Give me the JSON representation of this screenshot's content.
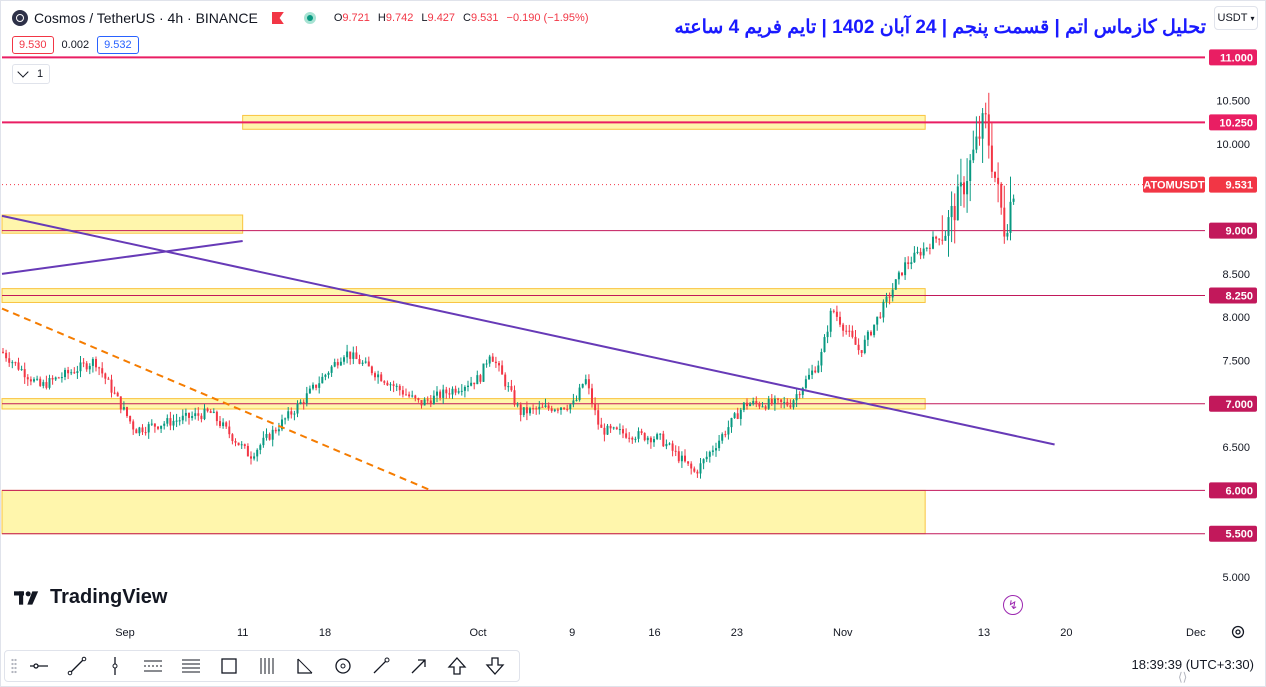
{
  "header": {
    "symbol_title": "Cosmos / TetherUS · 4h · BINANCE",
    "ohlc": [
      {
        "key": "O",
        "value": "9.721"
      },
      {
        "key": "H",
        "value": "9.742"
      },
      {
        "key": "L",
        "value": "9.427"
      },
      {
        "key": "C",
        "value": "9.531"
      }
    ],
    "change": "−0.190 (−1.95%)",
    "sell_price": "9.530",
    "spread": "0.002",
    "buy_price": "9.532",
    "indicator_count": "1"
  },
  "overlay_title": "تحلیل کازماس اتم | قسمت پنجم | 24 آبان 1402 | تایم فریم 4 ساعته",
  "currency": "USDT",
  "chart_data": {
    "type": "candlestick",
    "y_axis": {
      "ticks": [
        "10.500",
        "10.000",
        "8.500",
        "8.000",
        "7.500",
        "6.500",
        "5.000"
      ],
      "tick_values": [
        10.5,
        10.0,
        8.5,
        8.0,
        7.5,
        6.5,
        5.0
      ],
      "range": [
        4.7,
        11.5
      ]
    },
    "x_axis": {
      "ticks": [
        "Sep",
        "11",
        "18",
        "Oct",
        "9",
        "16",
        "23",
        "Nov",
        "13",
        "20",
        "Dec"
      ],
      "tick_dates": [
        "2023-09-01",
        "2023-09-11",
        "2023-09-18",
        "2023-10-01",
        "2023-10-09",
        "2023-10-16",
        "2023-10-23",
        "2023-11-01",
        "2023-11-13",
        "2023-11-20",
        "2023-12-01"
      ]
    },
    "price_levels": [
      {
        "label": "11.000",
        "value": 11.0,
        "color": "#e91e63"
      },
      {
        "label": "10.250",
        "value": 10.25,
        "color": "#e91e63"
      },
      {
        "label": "9.000",
        "value": 9.0,
        "color": "#c2185b"
      },
      {
        "label": "8.250",
        "value": 8.25,
        "color": "#c2185b"
      },
      {
        "label": "7.000",
        "value": 7.0,
        "color": "#c2185b"
      },
      {
        "label": "6.000",
        "value": 6.0,
        "color": "#c2185b"
      },
      {
        "label": "5.500",
        "value": 5.5,
        "color": "#c2185b"
      }
    ],
    "current_price": {
      "symbol": "ATOMUSDT",
      "label": "9.531",
      "value": 9.531,
      "color": "#f23645"
    },
    "zones": [
      {
        "from_date": "2023-09-11",
        "to_date": "2023-11-08",
        "low": 10.17,
        "high": 10.33
      },
      {
        "from_date": "2023-08-15",
        "to_date": "2023-09-11",
        "low": 8.97,
        "high": 9.18
      },
      {
        "from_date": "2023-08-15",
        "to_date": "2023-11-08",
        "low": 8.17,
        "high": 8.33
      },
      {
        "from_date": "2023-08-15",
        "to_date": "2023-11-08",
        "low": 6.94,
        "high": 7.06
      },
      {
        "from_date": "2023-08-15",
        "to_date": "2023-11-08",
        "low": 5.5,
        "high": 6.0
      }
    ],
    "trendlines": [
      {
        "style": "solid",
        "color": "#673ab7",
        "from": [
          "2023-08-15",
          8.5
        ],
        "to": [
          "2023-09-11",
          8.88
        ]
      },
      {
        "style": "solid",
        "color": "#673ab7",
        "from": [
          "2023-08-15",
          9.17
        ],
        "to": [
          "2023-11-19",
          6.53
        ]
      },
      {
        "style": "dashed",
        "color": "#f57c00",
        "from": [
          "2023-08-15",
          8.1
        ],
        "to": [
          "2023-09-27",
          6.0
        ]
      }
    ],
    "candles_summary": {
      "start_close": 7.5,
      "low": 6.2,
      "high": 10.6,
      "last_close": 9.531,
      "up_color": "#089981",
      "down_color": "#f23645"
    }
  },
  "watermark": "TradingView",
  "clock": "18:39:39",
  "timezone": "(UTC+3:30)",
  "toolbar_tools": [
    {
      "name": "horizontal-ray-tool"
    },
    {
      "name": "trend-line-tool"
    },
    {
      "name": "vertical-line-tool"
    },
    {
      "name": "parallel-channel-tool"
    },
    {
      "name": "fib-retracement-tool"
    },
    {
      "name": "rectangle-tool"
    },
    {
      "name": "pitchfork-tool"
    },
    {
      "name": "angle-tool"
    },
    {
      "name": "circle-tool"
    },
    {
      "name": "brush-tool"
    },
    {
      "name": "arrow-tool"
    },
    {
      "name": "arrow-up-tool"
    },
    {
      "name": "arrow-down-tool"
    }
  ]
}
